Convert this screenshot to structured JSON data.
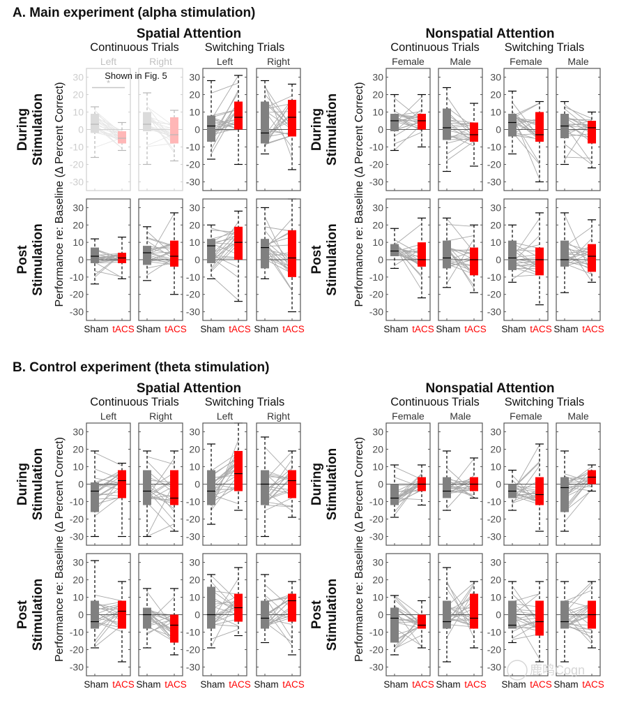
{
  "figure": {
    "sections": [
      {
        "id": "A",
        "title": "A. Main experiment (alpha stimulation)"
      },
      {
        "id": "B",
        "title": "B. Control experiment (theta stimulation)"
      }
    ],
    "groups": [
      "Spatial Attention",
      "Nonspatial Attention"
    ],
    "subgroups": [
      "Continuous Trials",
      "Switching Trials"
    ],
    "row_labels": [
      [
        "During",
        "Stimulation"
      ],
      [
        "Post",
        "Stimulation"
      ]
    ],
    "ylabel": "Performance re: Baseline (Δ Percent Correct)",
    "xlabels": [
      "Sham",
      "tACS"
    ],
    "annotation": "Shown in Fig. 5",
    "significance_marker": "*",
    "watermark": "鹿鸣Cogn",
    "colors": {
      "sham": "#808080",
      "tacs": "#ff0000",
      "subject_line": "#a8a8a8",
      "axis": "#555555"
    }
  },
  "chart_data": {
    "type": "box",
    "title": "Performance re: Baseline for sham vs tACS",
    "ylabel": "Performance re: Baseline (Δ Percent Correct)",
    "ylim": [
      -35,
      35
    ],
    "yticks": [
      -30,
      -20,
      -10,
      0,
      10,
      20,
      30
    ],
    "categories": [
      "Sham",
      "tACS"
    ],
    "box_fields": [
      "whisker_low",
      "q1",
      "median",
      "q3",
      "whisker_high"
    ],
    "panels": [
      {
        "section": "A",
        "row": "During Stimulation",
        "group": "Spatial Attention",
        "trials": "Continuous Trials",
        "label": "Left",
        "faded": true,
        "sig": true,
        "sham": [
          -16,
          -2,
          3,
          9,
          13
        ],
        "tacs": [
          -12,
          -8,
          -5,
          -1,
          4
        ]
      },
      {
        "section": "A",
        "row": "During Stimulation",
        "group": "Spatial Attention",
        "trials": "Continuous Trials",
        "label": "Right",
        "faded": true,
        "sham": [
          -20,
          -1,
          3,
          10,
          21
        ],
        "tacs": [
          -18,
          -8,
          -3,
          7,
          11
        ]
      },
      {
        "section": "A",
        "row": "During Stimulation",
        "group": "Spatial Attention",
        "trials": "Switching Trials",
        "label": "Left",
        "sham": [
          -17,
          -7,
          2,
          8,
          28
        ],
        "tacs": [
          -20,
          0,
          7,
          16,
          31
        ]
      },
      {
        "section": "A",
        "row": "During Stimulation",
        "group": "Spatial Attention",
        "trials": "Switching Trials",
        "label": "Right",
        "sham": [
          -14,
          -8,
          -2,
          16,
          28
        ],
        "tacs": [
          -23,
          -4,
          7,
          17,
          26
        ]
      },
      {
        "section": "A",
        "row": "During Stimulation",
        "group": "Nonspatial Attention",
        "trials": "Continuous Trials",
        "label": "Female",
        "sham": [
          -12,
          -1,
          5,
          9,
          20
        ],
        "tacs": [
          -10,
          0,
          5,
          9,
          20
        ]
      },
      {
        "section": "A",
        "row": "During Stimulation",
        "group": "Nonspatial Attention",
        "trials": "Continuous Trials",
        "label": "Male",
        "sham": [
          -24,
          -6,
          1,
          12,
          24
        ],
        "tacs": [
          -21,
          -7,
          -3,
          4,
          15
        ]
      },
      {
        "section": "A",
        "row": "During Stimulation",
        "group": "Nonspatial Attention",
        "trials": "Switching Trials",
        "label": "Female",
        "sham": [
          -14,
          -4,
          4,
          9,
          22
        ],
        "tacs": [
          -30,
          -7,
          -3,
          10,
          16
        ]
      },
      {
        "section": "A",
        "row": "During Stimulation",
        "group": "Nonspatial Attention",
        "trials": "Switching Trials",
        "label": "Male",
        "sham": [
          -20,
          -5,
          2,
          9,
          16
        ],
        "tacs": [
          -22,
          -8,
          1,
          5,
          10
        ]
      },
      {
        "section": "A",
        "row": "Post Stimulation",
        "group": "Spatial Attention",
        "trials": "Continuous Trials",
        "label": "Left",
        "sham": [
          -14,
          -2,
          2,
          7,
          12
        ],
        "tacs": [
          -11,
          -2,
          1,
          4,
          13
        ]
      },
      {
        "section": "A",
        "row": "Post Stimulation",
        "group": "Spatial Attention",
        "trials": "Continuous Trials",
        "label": "Right",
        "sham": [
          -12,
          -3,
          4,
          8,
          19
        ],
        "tacs": [
          -20,
          -4,
          2,
          11,
          27
        ]
      },
      {
        "section": "A",
        "row": "Post Stimulation",
        "group": "Spatial Attention",
        "trials": "Switching Trials",
        "label": "Left",
        "sham": [
          -11,
          -2,
          8,
          12,
          20
        ],
        "tacs": [
          -24,
          0,
          10,
          19,
          28
        ]
      },
      {
        "section": "A",
        "row": "Post Stimulation",
        "group": "Spatial Attention",
        "trials": "Switching Trials",
        "label": "Right",
        "sham": [
          -11,
          -5,
          7,
          12,
          30
        ],
        "tacs": [
          -30,
          -10,
          1,
          17,
          35
        ]
      },
      {
        "section": "A",
        "row": "Post Stimulation",
        "group": "Nonspatial Attention",
        "trials": "Continuous Trials",
        "label": "Female",
        "sham": [
          -5,
          2,
          5,
          9,
          18
        ],
        "tacs": [
          -22,
          -4,
          0,
          10,
          24
        ]
      },
      {
        "section": "A",
        "row": "Post Stimulation",
        "group": "Nonspatial Attention",
        "trials": "Continuous Trials",
        "label": "Male",
        "sham": [
          -16,
          -5,
          1,
          11,
          24
        ],
        "tacs": [
          -19,
          -9,
          0,
          7,
          20
        ]
      },
      {
        "section": "A",
        "row": "Post Stimulation",
        "group": "Nonspatial Attention",
        "trials": "Switching Trials",
        "label": "Female",
        "sham": [
          -13,
          -6,
          1,
          11,
          20
        ],
        "tacs": [
          -26,
          -9,
          0,
          7,
          27
        ]
      },
      {
        "section": "A",
        "row": "Post Stimulation",
        "group": "Nonspatial Attention",
        "trials": "Switching Trials",
        "label": "Male",
        "sham": [
          -19,
          -4,
          0,
          11,
          27
        ],
        "tacs": [
          -13,
          -7,
          2,
          9,
          23
        ]
      },
      {
        "section": "B",
        "row": "During Stimulation",
        "group": "Spatial Attention",
        "trials": "Continuous Trials",
        "label": "Left",
        "sham": [
          -30,
          -16,
          -4,
          1,
          19
        ],
        "tacs": [
          -30,
          -8,
          2,
          8,
          12
        ]
      },
      {
        "section": "B",
        "row": "During Stimulation",
        "group": "Spatial Attention",
        "trials": "Continuous Trials",
        "label": "Right",
        "sham": [
          -30,
          -12,
          -4,
          8,
          19
        ],
        "tacs": [
          -27,
          -12,
          -8,
          8,
          19
        ]
      },
      {
        "section": "B",
        "row": "During Stimulation",
        "group": "Spatial Attention",
        "trials": "Switching Trials",
        "label": "Left",
        "sham": [
          -23,
          -12,
          -4,
          8,
          23
        ],
        "tacs": [
          -15,
          -4,
          6,
          19,
          35
        ]
      },
      {
        "section": "B",
        "row": "During Stimulation",
        "group": "Spatial Attention",
        "trials": "Switching Trials",
        "label": "Right",
        "sham": [
          -30,
          -12,
          0,
          8,
          27
        ],
        "tacs": [
          -19,
          -8,
          2,
          8,
          19
        ]
      },
      {
        "section": "B",
        "row": "During Stimulation",
        "group": "Nonspatial Attention",
        "trials": "Continuous Trials",
        "label": "Female",
        "sham": [
          -19,
          -12,
          -8,
          0,
          11
        ],
        "tacs": [
          -12,
          -4,
          0,
          4,
          11
        ]
      },
      {
        "section": "B",
        "row": "During Stimulation",
        "group": "Nonspatial Attention",
        "trials": "Continuous Trials",
        "label": "Male",
        "sham": [
          -15,
          -8,
          -4,
          4,
          19
        ],
        "tacs": [
          -8,
          -4,
          0,
          4,
          15
        ]
      },
      {
        "section": "B",
        "row": "During Stimulation",
        "group": "Nonspatial Attention",
        "trials": "Switching Trials",
        "label": "Female",
        "sham": [
          -15,
          -8,
          -4,
          0,
          8
        ],
        "tacs": [
          -27,
          -12,
          -6,
          4,
          23
        ]
      },
      {
        "section": "B",
        "row": "During Stimulation",
        "group": "Nonspatial Attention",
        "trials": "Switching Trials",
        "label": "Male",
        "sham": [
          -27,
          -16,
          -2,
          4,
          19
        ],
        "tacs": [
          -4,
          0,
          4,
          8,
          11
        ]
      },
      {
        "section": "B",
        "row": "Post Stimulation",
        "group": "Spatial Attention",
        "trials": "Continuous Trials",
        "label": "Left",
        "sham": [
          -19,
          -8,
          -4,
          8,
          31
        ],
        "tacs": [
          -27,
          -8,
          2,
          8,
          19
        ]
      },
      {
        "section": "B",
        "row": "Post Stimulation",
        "group": "Spatial Attention",
        "trials": "Continuous Trials",
        "label": "Right",
        "sham": [
          -19,
          -8,
          0,
          4,
          15
        ],
        "tacs": [
          -23,
          -16,
          -6,
          0,
          15
        ]
      },
      {
        "section": "B",
        "row": "Post Stimulation",
        "group": "Spatial Attention",
        "trials": "Switching Trials",
        "label": "Left",
        "sham": [
          -19,
          -8,
          0,
          16,
          23
        ],
        "tacs": [
          -12,
          -4,
          4,
          12,
          27
        ]
      },
      {
        "section": "B",
        "row": "Post Stimulation",
        "group": "Spatial Attention",
        "trials": "Switching Trials",
        "label": "Right",
        "sham": [
          -16,
          -8,
          -2,
          8,
          23
        ],
        "tacs": [
          -23,
          -4,
          8,
          12,
          19
        ]
      },
      {
        "section": "B",
        "row": "Post Stimulation",
        "group": "Nonspatial Attention",
        "trials": "Continuous Trials",
        "label": "Female",
        "sham": [
          -23,
          -16,
          -2,
          4,
          11
        ],
        "tacs": [
          -19,
          -8,
          -6,
          0,
          8
        ]
      },
      {
        "section": "B",
        "row": "Post Stimulation",
        "group": "Nonspatial Attention",
        "trials": "Continuous Trials",
        "label": "Male",
        "sham": [
          -27,
          -8,
          -4,
          8,
          27
        ],
        "tacs": [
          -19,
          -8,
          -2,
          12,
          19
        ]
      },
      {
        "section": "B",
        "row": "Post Stimulation",
        "group": "Nonspatial Attention",
        "trials": "Switching Trials",
        "label": "Female",
        "sham": [
          -16,
          -8,
          -6,
          8,
          19
        ],
        "tacs": [
          -27,
          -12,
          -4,
          8,
          19
        ]
      },
      {
        "section": "B",
        "row": "Post Stimulation",
        "group": "Nonspatial Attention",
        "trials": "Switching Trials",
        "label": "Male",
        "sham": [
          -27,
          -8,
          -4,
          8,
          19
        ],
        "tacs": [
          -19,
          -8,
          0,
          8,
          19
        ]
      }
    ]
  }
}
